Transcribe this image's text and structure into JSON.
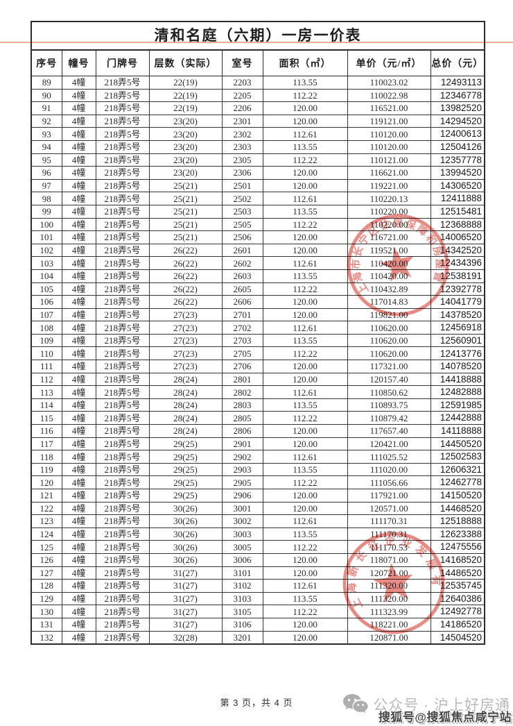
{
  "page": {
    "title": "清和名庭（六期）一房一价表"
  },
  "table": {
    "columns": [
      "序号",
      "幢号",
      "门牌号",
      "层数（实际）",
      "室号",
      "面积（㎡）",
      "单价（元/㎡）",
      "总价（元）"
    ],
    "rows": [
      [
        "89",
        "4幢",
        "218弄5号",
        "22(19)",
        "2203",
        "113.55",
        "110023.02",
        "12493113"
      ],
      [
        "90",
        "4幢",
        "218弄5号",
        "22(19)",
        "2205",
        "112.22",
        "110022.98",
        "12346778"
      ],
      [
        "91",
        "4幢",
        "218弄5号",
        "22(19)",
        "2206",
        "120.00",
        "116521.00",
        "13982520"
      ],
      [
        "92",
        "4幢",
        "218弄5号",
        "23(20)",
        "2301",
        "120.00",
        "119121.00",
        "14294520"
      ],
      [
        "93",
        "4幢",
        "218弄5号",
        "23(20)",
        "2302",
        "112.61",
        "110120.00",
        "12400613"
      ],
      [
        "94",
        "4幢",
        "218弄5号",
        "23(20)",
        "2303",
        "113.55",
        "110120.00",
        "12504126"
      ],
      [
        "95",
        "4幢",
        "218弄5号",
        "23(20)",
        "2305",
        "112.22",
        "110121.00",
        "12357778"
      ],
      [
        "96",
        "4幢",
        "218弄5号",
        "23(20)",
        "2306",
        "120.00",
        "116621.00",
        "13994520"
      ],
      [
        "97",
        "4幢",
        "218弄5号",
        "25(21)",
        "2501",
        "120.00",
        "119221.00",
        "14306520"
      ],
      [
        "98",
        "4幢",
        "218弄5号",
        "25(21)",
        "2502",
        "112.61",
        "110220.13",
        "12411888"
      ],
      [
        "99",
        "4幢",
        "218弄5号",
        "25(21)",
        "2503",
        "113.55",
        "110220.00",
        "12515481"
      ],
      [
        "100",
        "4幢",
        "218弄5号",
        "25(21)",
        "2505",
        "112.22",
        "110220.00",
        "12368888"
      ],
      [
        "101",
        "4幢",
        "218弄5号",
        "25(21)",
        "2506",
        "120.00",
        "116721.00",
        "14006520"
      ],
      [
        "102",
        "4幢",
        "218弄5号",
        "26(22)",
        "2601",
        "120.00",
        "119521.00",
        "14342520"
      ],
      [
        "103",
        "4幢",
        "218弄5号",
        "26(22)",
        "2602",
        "112.61",
        "110420.00",
        "12434396"
      ],
      [
        "104",
        "4幢",
        "218弄5号",
        "26(22)",
        "2603",
        "113.55",
        "110420.00",
        "12538191"
      ],
      [
        "105",
        "4幢",
        "218弄5号",
        "26(22)",
        "2605",
        "112.22",
        "110432.89",
        "12392778"
      ],
      [
        "106",
        "4幢",
        "218弄5号",
        "26(22)",
        "2606",
        "120.00",
        "117014.83",
        "14041779"
      ],
      [
        "107",
        "4幢",
        "218弄5号",
        "27(23)",
        "2701",
        "120.00",
        "119821.00",
        "14378520"
      ],
      [
        "108",
        "4幢",
        "218弄5号",
        "27(23)",
        "2702",
        "112.61",
        "110620.00",
        "12456918"
      ],
      [
        "109",
        "4幢",
        "218弄5号",
        "27(23)",
        "2703",
        "113.55",
        "110620.00",
        "12560901"
      ],
      [
        "110",
        "4幢",
        "218弄5号",
        "27(23)",
        "2705",
        "112.22",
        "110620.00",
        "12413776"
      ],
      [
        "111",
        "4幢",
        "218弄5号",
        "27(23)",
        "2706",
        "120.00",
        "117321.00",
        "14078520"
      ],
      [
        "112",
        "4幢",
        "218弄5号",
        "28(24)",
        "2801",
        "120.00",
        "120157.40",
        "14418888"
      ],
      [
        "113",
        "4幢",
        "218弄5号",
        "28(24)",
        "2802",
        "112.61",
        "110850.62",
        "12482888"
      ],
      [
        "114",
        "4幢",
        "218弄5号",
        "28(24)",
        "2803",
        "113.55",
        "110893.75",
        "12591985"
      ],
      [
        "115",
        "4幢",
        "218弄5号",
        "28(24)",
        "2805",
        "112.22",
        "110879.42",
        "12442888"
      ],
      [
        "116",
        "4幢",
        "218弄5号",
        "28(24)",
        "2806",
        "120.00",
        "117657.40",
        "14118888"
      ],
      [
        "117",
        "4幢",
        "218弄5号",
        "29(25)",
        "2901",
        "120.00",
        "120421.00",
        "14450520"
      ],
      [
        "118",
        "4幢",
        "218弄5号",
        "29(25)",
        "2902",
        "112.61",
        "111025.52",
        "12502583"
      ],
      [
        "119",
        "4幢",
        "218弄5号",
        "29(25)",
        "2903",
        "113.55",
        "111020.00",
        "12606321"
      ],
      [
        "120",
        "4幢",
        "218弄5号",
        "29(25)",
        "2905",
        "112.22",
        "111056.66",
        "12462778"
      ],
      [
        "121",
        "4幢",
        "218弄5号",
        "29(25)",
        "2906",
        "120.00",
        "117921.00",
        "14150520"
      ],
      [
        "122",
        "4幢",
        "218弄5号",
        "30(26)",
        "3001",
        "120.00",
        "120571.00",
        "14468520"
      ],
      [
        "123",
        "4幢",
        "218弄5号",
        "30(26)",
        "3002",
        "112.61",
        "111170.31",
        "12518888"
      ],
      [
        "124",
        "4幢",
        "218弄5号",
        "30(26)",
        "3003",
        "113.55",
        "111170.31",
        "12623388"
      ],
      [
        "125",
        "4幢",
        "218弄5号",
        "30(26)",
        "3005",
        "112.22",
        "111170.53",
        "12475556"
      ],
      [
        "126",
        "4幢",
        "218弄5号",
        "30(26)",
        "3006",
        "120.00",
        "118071.00",
        "14168520"
      ],
      [
        "127",
        "4幢",
        "218弄5号",
        "31(27)",
        "3101",
        "120.00",
        "120721.00",
        "14486520"
      ],
      [
        "128",
        "4幢",
        "218弄5号",
        "31(27)",
        "3102",
        "112.61",
        "111320.00",
        "12535745"
      ],
      [
        "129",
        "4幢",
        "218弄5号",
        "31(27)",
        "3103",
        "113.55",
        "111320.00",
        "12640386"
      ],
      [
        "130",
        "4幢",
        "218弄5号",
        "31(27)",
        "3105",
        "112.22",
        "111323.99",
        "12492778"
      ],
      [
        "131",
        "4幢",
        "218弄5号",
        "31(27)",
        "3106",
        "120.00",
        "118221.00",
        "14186520"
      ],
      [
        "132",
        "4幢",
        "218弄5号",
        "32(28)",
        "3201",
        "120.00",
        "120871.00",
        "14504520"
      ]
    ]
  },
  "stamps": [
    {
      "text": "上海市长宁区住房保障和房屋管理局"
    },
    {
      "text": "上海新长征企业发展有限公司"
    }
  ],
  "footer": {
    "page_indicator": "第 3 页，共 4 页"
  },
  "watermarks": {
    "wechat_account": "公众号 · 沪上好房通",
    "sohu_account": "搜狐号@搜狐焦点咸宁站"
  },
  "colors": {
    "seal_red": "#d8453a",
    "accent_line": "#eea083"
  }
}
